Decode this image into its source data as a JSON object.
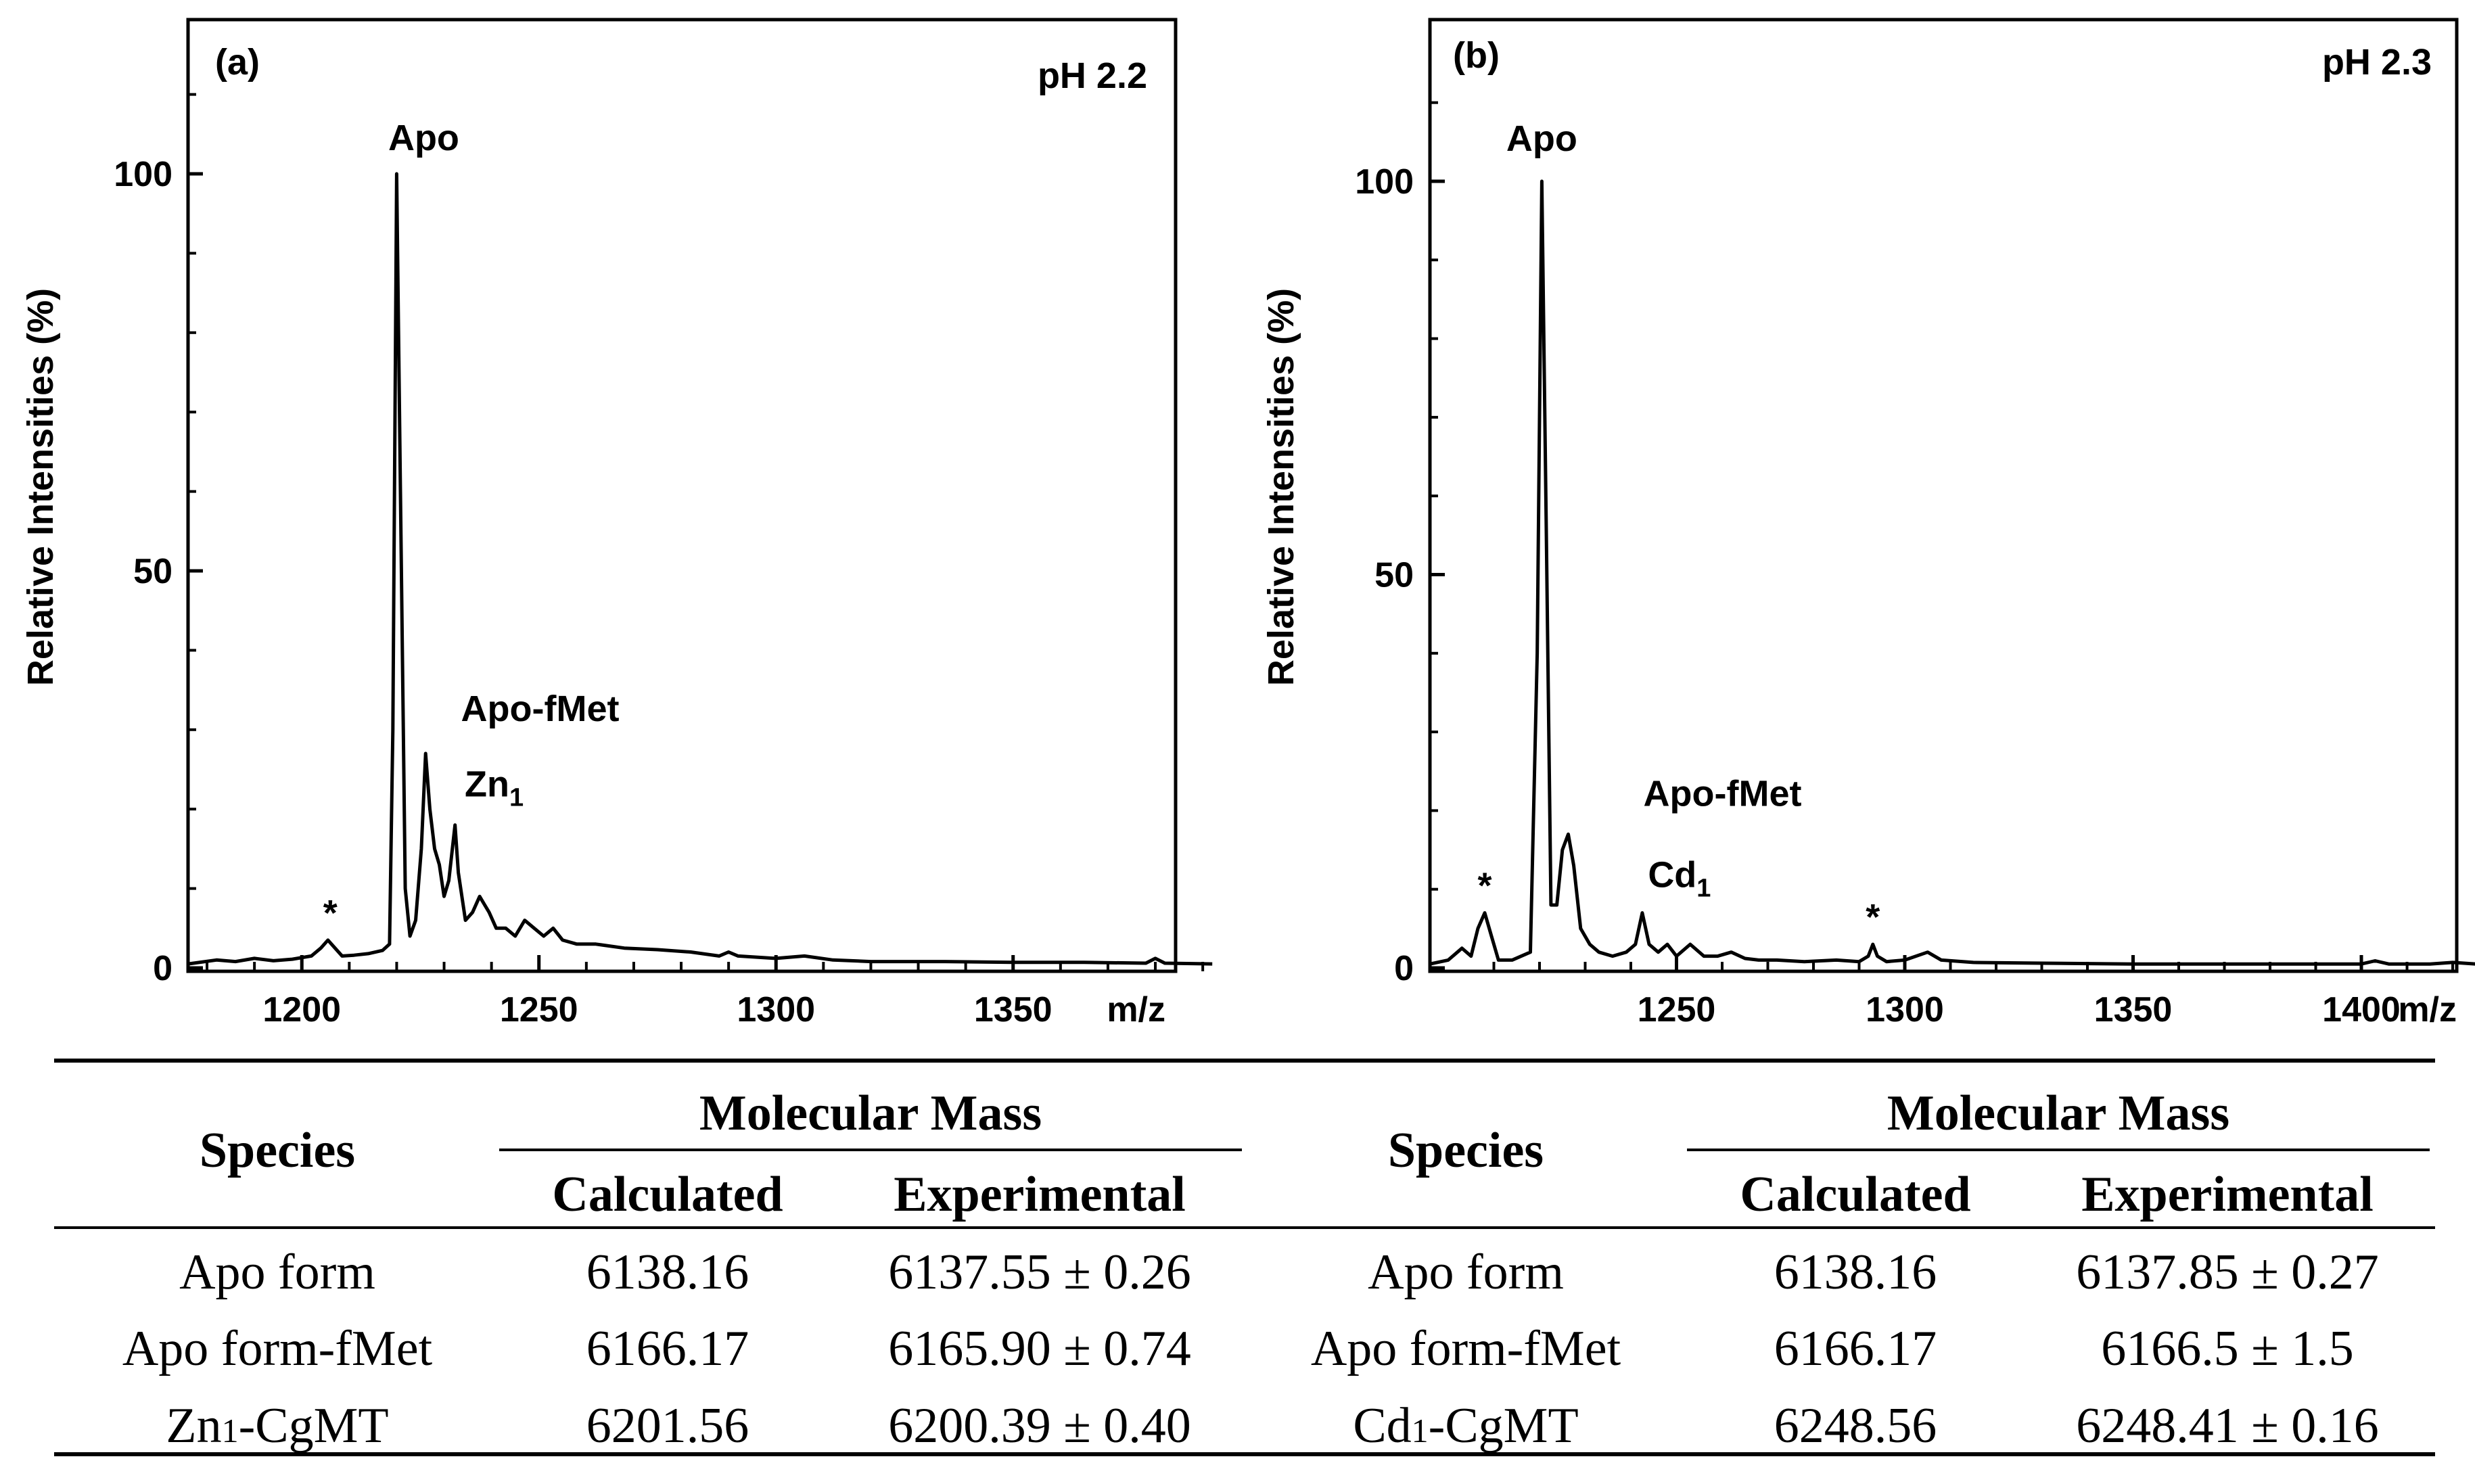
{
  "chart_data": [
    {
      "type": "line",
      "panel_label": "(a)",
      "condition": "pH 2.2",
      "ylabel": "Relative Intensities (%)",
      "xlabel": "m/z",
      "xlim": [
        1176,
        1392
      ],
      "ylim": [
        0,
        120
      ],
      "x_ticks": [
        "1200",
        "1250",
        "1300",
        "1350"
      ],
      "y_ticks": [
        "0",
        "50",
        "100"
      ],
      "series": [
        {
          "name": "spectrum",
          "x": [
            1176,
            1182,
            1186,
            1190,
            1194,
            1198,
            1202,
            1204,
            1205.5,
            1207,
            1208.5,
            1211,
            1214,
            1217,
            1218.5,
            1219.2,
            1220,
            1220.8,
            1221.8,
            1222.8,
            1224,
            1225.2,
            1226.1,
            1227,
            1228,
            1229,
            1230,
            1231,
            1232.3,
            1233,
            1234.5,
            1236,
            1237.5,
            1238.5,
            1239.5,
            1241,
            1243,
            1245,
            1247,
            1249,
            1251,
            1253,
            1255,
            1258,
            1262,
            1268,
            1275,
            1282,
            1288,
            1290,
            1292,
            1300,
            1306,
            1312,
            1320,
            1335,
            1350,
            1365,
            1378,
            1380,
            1382,
            1392
          ],
          "y": [
            0.5,
            1,
            0.8,
            1.2,
            0.9,
            1.1,
            1.5,
            2.5,
            3.5,
            2.5,
            1.5,
            1.6,
            1.8,
            2.2,
            3,
            30,
            100,
            60,
            10,
            4,
            6,
            15,
            27,
            20,
            15,
            13,
            9,
            11,
            18,
            12,
            6,
            7,
            9,
            8,
            7,
            5,
            5,
            4,
            6,
            5,
            4,
            5,
            3.5,
            3,
            3,
            2.5,
            2.3,
            2,
            1.5,
            2,
            1.5,
            1.2,
            1.5,
            1,
            0.8,
            0.8,
            0.7,
            0.7,
            0.6,
            1.2,
            0.6,
            0.5
          ]
        }
      ],
      "annotations": [
        {
          "text": "Apo",
          "x": 1220
        },
        {
          "text": "Apo-fMet",
          "x": 1226
        },
        {
          "text": "Zn",
          "sub": "1",
          "x": 1232
        },
        {
          "text": "*",
          "x": 1206
        }
      ]
    },
    {
      "type": "line",
      "panel_label": "(b)",
      "condition": "pH 2.3",
      "ylabel": "Relative Intensities (%)",
      "xlabel": "m/z",
      "xlim": [
        1196,
        1430
      ],
      "ylim": [
        0,
        120
      ],
      "x_ticks": [
        "1250",
        "1300",
        "1350",
        "1400"
      ],
      "y_ticks": [
        "0",
        "50",
        "100"
      ],
      "series": [
        {
          "name": "spectrum",
          "x": [
            1196,
            1200,
            1203,
            1205,
            1206.5,
            1208,
            1209.5,
            1211,
            1214,
            1218,
            1219.5,
            1220.5,
            1221.5,
            1222.5,
            1223.8,
            1225,
            1226.3,
            1227.5,
            1229,
            1231,
            1233,
            1236,
            1239,
            1241,
            1242.5,
            1244,
            1246,
            1248,
            1250,
            1253,
            1256,
            1259,
            1262,
            1265,
            1268,
            1272,
            1278,
            1285,
            1290,
            1292,
            1293,
            1294,
            1296,
            1300,
            1305,
            1308,
            1315,
            1330,
            1350,
            1370,
            1380,
            1400,
            1403,
            1406,
            1415,
            1420,
            1430
          ],
          "y": [
            0.5,
            1,
            2.5,
            1.5,
            5,
            7,
            4,
            1,
            1,
            2,
            40,
            100,
            55,
            8,
            8,
            15,
            17,
            13,
            5,
            3,
            2,
            1.5,
            2,
            3,
            7,
            3,
            2,
            3,
            1.5,
            3,
            1.5,
            1.5,
            2,
            1.2,
            1,
            1,
            0.8,
            1,
            0.8,
            1.5,
            3,
            1.5,
            0.8,
            1,
            2,
            1,
            0.7,
            0.6,
            0.5,
            0.5,
            0.5,
            0.5,
            0.9,
            0.5,
            0.5,
            0.7,
            0.3
          ]
        }
      ],
      "annotations": [
        {
          "text": "Apo",
          "x": 1220.5
        },
        {
          "text": "Apo-fMet",
          "x": 1226
        },
        {
          "text": "Cd",
          "sub": "1",
          "x": 1242.5
        },
        {
          "text": "*",
          "x": 1208
        },
        {
          "text": "*",
          "x": 1293
        }
      ]
    }
  ],
  "table": {
    "species_header": "Species",
    "mass_header": "Molecular Mass",
    "calc_header": "Calculated",
    "exp_header": "Experimental",
    "left_rows": [
      {
        "species": "Apo form",
        "calc": "6138.16",
        "exp": "6137.55 ± 0.26"
      },
      {
        "species": "Apo form-fMet",
        "calc": "6166.17",
        "exp": "6165.90 ± 0.74"
      },
      {
        "species_pre": "Zn",
        "species_sub": "1",
        "species_post": "-CgMT",
        "calc": "6201.56",
        "exp": "6200.39 ± 0.40"
      }
    ],
    "right_rows": [
      {
        "species": "Apo form",
        "calc": "6138.16",
        "exp": "6137.85 ± 0.27"
      },
      {
        "species": "Apo form-fMet",
        "calc": "6166.17",
        "exp": "6166.5 ± 1.5"
      },
      {
        "species_pre": "Cd",
        "species_sub": "1",
        "species_post": "-CgMT",
        "calc": "6248.56",
        "exp": "6248.41 ± 0.16"
      }
    ]
  }
}
